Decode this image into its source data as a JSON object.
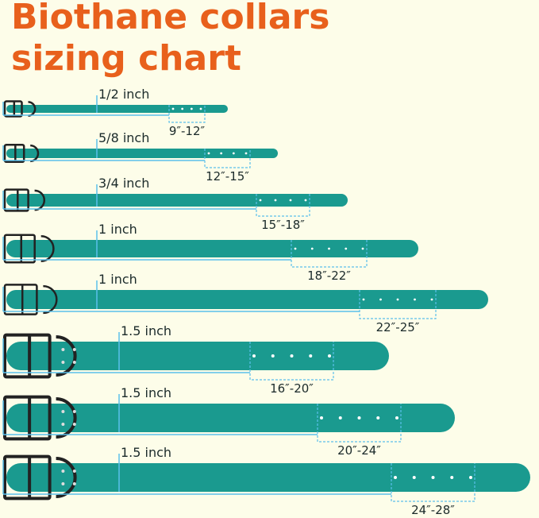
{
  "title": [
    "Biothane collars",
    "sizing chart"
  ],
  "collars": [
    {
      "width": "1/2 inch",
      "range": "9″-12″"
    },
    {
      "width": "5/8 inch",
      "range": "12″-15″"
    },
    {
      "width": "3/4 inch",
      "range": "15″-18″"
    },
    {
      "width": "1 inch",
      "range": "18″-22″"
    },
    {
      "width": "1 inch",
      "range": "22″-25″"
    },
    {
      "width": "1.5 inch",
      "range": "16″-20″"
    },
    {
      "width": "1.5 inch",
      "range": "20″-24″"
    },
    {
      "width": "1.5 inch",
      "range": "24″-28″"
    }
  ]
}
